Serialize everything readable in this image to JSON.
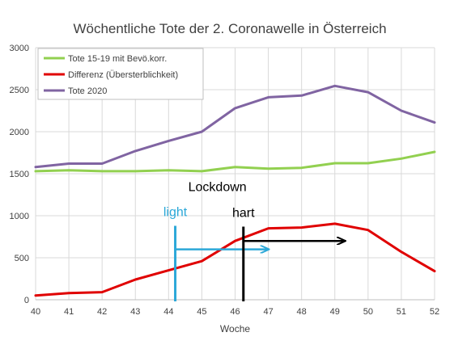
{
  "chart_data": {
    "type": "line",
    "title": "Wöchentliche Tote der 2. Coronawelle in Österreich",
    "xlabel": "Woche",
    "ylabel": "",
    "x": [
      40,
      41,
      42,
      43,
      44,
      45,
      46,
      47,
      48,
      49,
      50,
      51,
      52
    ],
    "x_tick_labels": [
      "40",
      "41",
      "42",
      "43",
      "44",
      "45",
      "46",
      "47",
      "48",
      "49",
      "50",
      "51",
      "52"
    ],
    "xlim": [
      40,
      52
    ],
    "ylim": [
      0,
      3000
    ],
    "y_ticks": [
      0,
      500,
      1000,
      1500,
      2000,
      2500,
      3000
    ],
    "y_tick_labels": [
      "0",
      "500",
      "1000",
      "1500",
      "2000",
      "2500",
      "3000"
    ],
    "grid": true,
    "legend_position": "top-left",
    "series": [
      {
        "name": "Tote 15-19 mit Bevö.korr.",
        "color": "#92d050",
        "values": [
          1530,
          1540,
          1530,
          1530,
          1540,
          1530,
          1580,
          1560,
          1570,
          1625,
          1625,
          1680,
          1760
        ]
      },
      {
        "name": "Differenz (Übersterblichkeit)",
        "color": "#e00000",
        "values": [
          50,
          80,
          90,
          240,
          350,
          460,
          700,
          850,
          860,
          905,
          830,
          570,
          340
        ]
      },
      {
        "name": "Tote 2020",
        "color": "#8064a2",
        "values": [
          1580,
          1620,
          1620,
          1770,
          1890,
          2000,
          2280,
          2410,
          2430,
          2545,
          2470,
          2250,
          2110
        ]
      }
    ],
    "annotations": {
      "lockdown_label": "Lockdown",
      "light": {
        "label": "light",
        "color": "#2ca8d8",
        "week": 44.2,
        "line_top": 880,
        "arrow_y": 600,
        "arrow_to_week": 47.0
      },
      "hart": {
        "label": "hart",
        "color": "#000000",
        "week": 46.25,
        "line_top": 870,
        "arrow_y": 700,
        "arrow_to_week": 49.3
      }
    }
  }
}
